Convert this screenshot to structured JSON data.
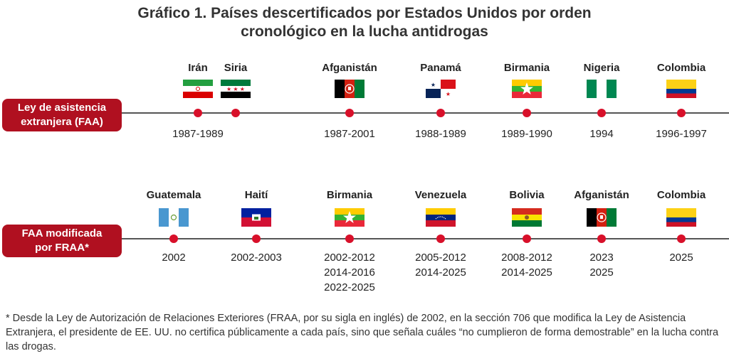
{
  "title_line1": "Gráfico 1. Países descertificados por Estados Unidos por orden",
  "title_line2": "cronológico en la lucha antidrogas",
  "rows": [
    {
      "label_line1": "Ley de asistencia",
      "label_line2": "extranjera (FAA)",
      "events": [
        {
          "countries": [
            "Irán"
          ],
          "flag": "iran",
          "years": [
            "1987-1989"
          ]
        },
        {
          "countries": [
            "Siria"
          ],
          "flag": "syria",
          "years": []
        },
        {
          "countries": [
            "Afganistán"
          ],
          "flag": "afghanistan",
          "years": [
            "1987-2001"
          ]
        },
        {
          "countries": [
            "Panamá"
          ],
          "flag": "panama",
          "years": [
            "1988-1989"
          ]
        },
        {
          "countries": [
            "Birmania"
          ],
          "flag": "myanmar",
          "years": [
            "1989-1990"
          ]
        },
        {
          "countries": [
            "Nigeria"
          ],
          "flag": "nigeria",
          "years": [
            "1994"
          ]
        },
        {
          "countries": [
            "Colombia"
          ],
          "flag": "colombia",
          "years": [
            "1996-1997"
          ]
        }
      ]
    },
    {
      "label_line1": "FAA modificada",
      "label_line2": "por FRAA*",
      "events": [
        {
          "countries": [
            "Guatemala"
          ],
          "flag": "guatemala",
          "years": [
            "2002"
          ]
        },
        {
          "countries": [
            "Haití"
          ],
          "flag": "haiti",
          "years": [
            "2002-2003"
          ]
        },
        {
          "countries": [
            "Birmania"
          ],
          "flag": "myanmar",
          "years": [
            "2002-2012",
            "2014-2016",
            "2022-2025"
          ]
        },
        {
          "countries": [
            "Venezuela"
          ],
          "flag": "venezuela",
          "years": [
            "2005-2012",
            "2014-2025"
          ]
        },
        {
          "countries": [
            "Bolivia"
          ],
          "flag": "bolivia",
          "years": [
            "2008-2012",
            "2014-2025"
          ]
        },
        {
          "countries": [
            "Afganistán"
          ],
          "flag": "afghanistan",
          "years": [
            "2023",
            "2025"
          ]
        },
        {
          "countries": [
            "Colombia"
          ],
          "flag": "colombia",
          "years": [
            "2025"
          ]
        }
      ]
    }
  ],
  "footnote": "* Desde la Ley de Autorización de Relaciones Exteriores (FRAA, por su sigla en inglés) de 2002, en la sección 706 que modifica la Ley de Asistencia Extranjera, el presidente de EE. UU. no certifica públicamente a cada país, sino que señala cuáles “no cumplieron de forma demostrable” en la lucha contra las drogas.",
  "colors": {
    "accent": "#b01020",
    "dot": "#d8102a",
    "axis": "#555555"
  }
}
